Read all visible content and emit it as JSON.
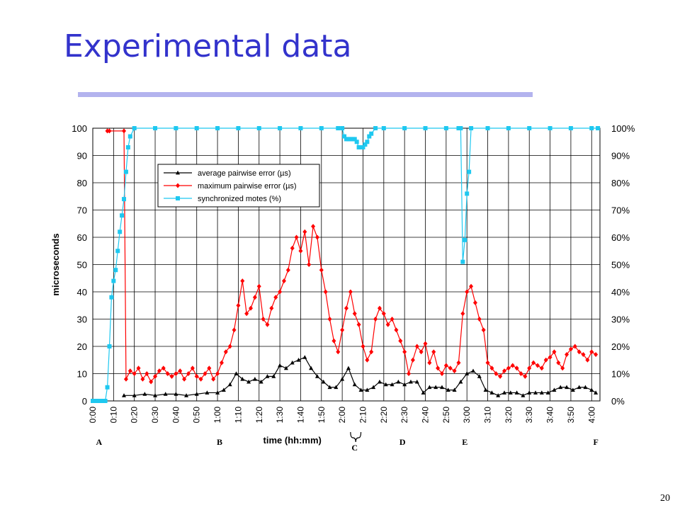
{
  "slide": {
    "title": "Experimental data",
    "page_number": "20",
    "title_color": "#3333cc",
    "rule_color": "#b3b3ee"
  },
  "chart_data": {
    "type": "line",
    "xlabel": "time (hh:mm)",
    "ylabel_left": "microseconds",
    "ylim_left": [
      0,
      100
    ],
    "ylim_right": [
      0,
      100
    ],
    "xlim_minutes": [
      0,
      244
    ],
    "grid": true,
    "legend_position": "top-left",
    "x_tick_labels": [
      "0:00",
      "0:10",
      "0:20",
      "0:30",
      "0:40",
      "0:50",
      "1:00",
      "1:10",
      "1:20",
      "1:30",
      "1:40",
      "1:50",
      "2:00",
      "2:10",
      "2:20",
      "2:30",
      "2:40",
      "2:50",
      "3:00",
      "3:10",
      "3:20",
      "3:30",
      "3:40",
      "3:50",
      "4:00"
    ],
    "y_left_tick_labels": [
      "0",
      "10",
      "20",
      "30",
      "40",
      "50",
      "60",
      "70",
      "80",
      "90",
      "100"
    ],
    "y_right_tick_labels": [
      "0%",
      "10%",
      "20%",
      "30%",
      "40%",
      "50%",
      "60%",
      "70%",
      "80%",
      "90%",
      "100%"
    ],
    "event_labels": [
      {
        "text": "A",
        "x_minutes": 3
      },
      {
        "text": "B",
        "x_minutes": 61
      },
      {
        "text": "C",
        "x_minutes": 126
      },
      {
        "text": "D",
        "x_minutes": 149
      },
      {
        "text": "E",
        "x_minutes": 179
      },
      {
        "text": "F",
        "x_minutes": 242
      }
    ],
    "brace_range_minutes": [
      124,
      129
    ],
    "series": [
      {
        "name": "average pairwise error (µs)",
        "axis": "left",
        "color": "#000000",
        "marker": "triangle",
        "x": [
          15,
          20,
          25,
          30,
          35,
          40,
          45,
          50,
          55,
          60,
          63,
          66,
          69,
          72,
          75,
          78,
          81,
          84,
          87,
          90,
          93,
          96,
          99,
          102,
          105,
          108,
          111,
          114,
          117,
          120,
          123,
          126,
          129,
          132,
          135,
          138,
          141,
          144,
          147,
          150,
          153,
          156,
          159,
          162,
          165,
          168,
          171,
          174,
          177,
          180,
          183,
          186,
          189,
          192,
          195,
          198,
          201,
          204,
          207,
          210,
          213,
          216,
          219,
          222,
          225,
          228,
          231,
          234,
          237,
          240,
          242
        ],
        "values": [
          2,
          2,
          2.5,
          2,
          2.5,
          2.5,
          2,
          2.5,
          3,
          3,
          4,
          6,
          10,
          8,
          7,
          8,
          7,
          9,
          9,
          13,
          12,
          14,
          15,
          16,
          12,
          9,
          7,
          5,
          5,
          8,
          12,
          6,
          4,
          4,
          5,
          7,
          6,
          6,
          7,
          6,
          7,
          7,
          3,
          5,
          5,
          5,
          4,
          4,
          7,
          10,
          11,
          9,
          4,
          3,
          2,
          3,
          3,
          3,
          2,
          3,
          3,
          3,
          3,
          4,
          5,
          5,
          4,
          5,
          5,
          4,
          3
        ]
      },
      {
        "name": "maximum pairwise error (µs)",
        "axis": "left",
        "color": "#ff0000",
        "marker": "diamond",
        "x": [
          7,
          8,
          15,
          16,
          18,
          20,
          22,
          24,
          26,
          28,
          30,
          32,
          34,
          36,
          38,
          40,
          42,
          44,
          46,
          48,
          50,
          52,
          54,
          56,
          58,
          60,
          62,
          64,
          66,
          68,
          70,
          72,
          74,
          76,
          78,
          80,
          82,
          84,
          86,
          88,
          90,
          92,
          94,
          96,
          98,
          100,
          102,
          104,
          106,
          108,
          110,
          112,
          114,
          116,
          118,
          120,
          122,
          124,
          126,
          128,
          130,
          132,
          134,
          136,
          138,
          140,
          142,
          144,
          146,
          148,
          150,
          152,
          154,
          156,
          158,
          160,
          162,
          164,
          166,
          168,
          170,
          172,
          174,
          176,
          178,
          180,
          182,
          184,
          186,
          188,
          190,
          192,
          194,
          196,
          198,
          200,
          202,
          204,
          206,
          208,
          210,
          212,
          214,
          216,
          218,
          220,
          222,
          224,
          226,
          228,
          230,
          232,
          234,
          236,
          238,
          240,
          242
        ],
        "values": [
          99,
          99,
          99,
          8,
          11,
          10,
          12,
          8,
          10,
          7,
          9,
          11,
          12,
          10,
          9,
          10,
          11,
          8,
          10,
          12,
          9,
          8,
          10,
          12,
          8,
          10,
          14,
          18,
          20,
          26,
          35,
          44,
          32,
          34,
          38,
          42,
          30,
          28,
          34,
          38,
          40,
          44,
          48,
          56,
          60,
          55,
          62,
          50,
          64,
          60,
          48,
          40,
          30,
          22,
          18,
          26,
          34,
          40,
          32,
          28,
          20,
          15,
          18,
          30,
          34,
          32,
          28,
          30,
          26,
          22,
          18,
          10,
          15,
          20,
          18,
          21,
          14,
          18,
          12,
          10,
          13,
          12,
          11,
          14,
          32,
          40,
          42,
          36,
          30,
          26,
          14,
          12,
          10,
          9,
          11,
          12,
          13,
          12,
          10,
          9,
          12,
          14,
          13,
          12,
          15,
          16,
          18,
          14,
          12,
          17,
          19,
          20,
          18,
          17,
          15,
          18,
          17
        ]
      },
      {
        "name": "synchronized motes (%)",
        "axis": "right",
        "color": "#1ec8f0",
        "marker": "square",
        "x": [
          0,
          1,
          2,
          3,
          4,
          5,
          6,
          7,
          8,
          9,
          10,
          11,
          12,
          13,
          14,
          15,
          16,
          17,
          18,
          20,
          30,
          40,
          50,
          60,
          70,
          80,
          90,
          100,
          110,
          118,
          120,
          121,
          122,
          123,
          124,
          125,
          126,
          127,
          128,
          129,
          130,
          131,
          132,
          133,
          134,
          136,
          140,
          150,
          160,
          170,
          176,
          177,
          178,
          179,
          180,
          181,
          182,
          190,
          200,
          210,
          220,
          230,
          240,
          243
        ],
        "values": [
          0,
          0,
          0,
          0,
          0,
          0,
          0,
          5,
          20,
          38,
          44,
          48,
          55,
          62,
          68,
          74,
          84,
          93,
          97,
          100,
          100,
          100,
          100,
          100,
          100,
          100,
          100,
          100,
          100,
          100,
          100,
          97,
          96,
          96,
          96,
          96,
          96,
          95,
          93,
          93,
          93,
          94,
          95,
          97,
          98,
          100,
          100,
          100,
          100,
          100,
          100,
          100,
          51,
          59,
          76,
          84,
          100,
          100,
          100,
          100,
          100,
          100,
          100,
          100
        ]
      }
    ]
  }
}
